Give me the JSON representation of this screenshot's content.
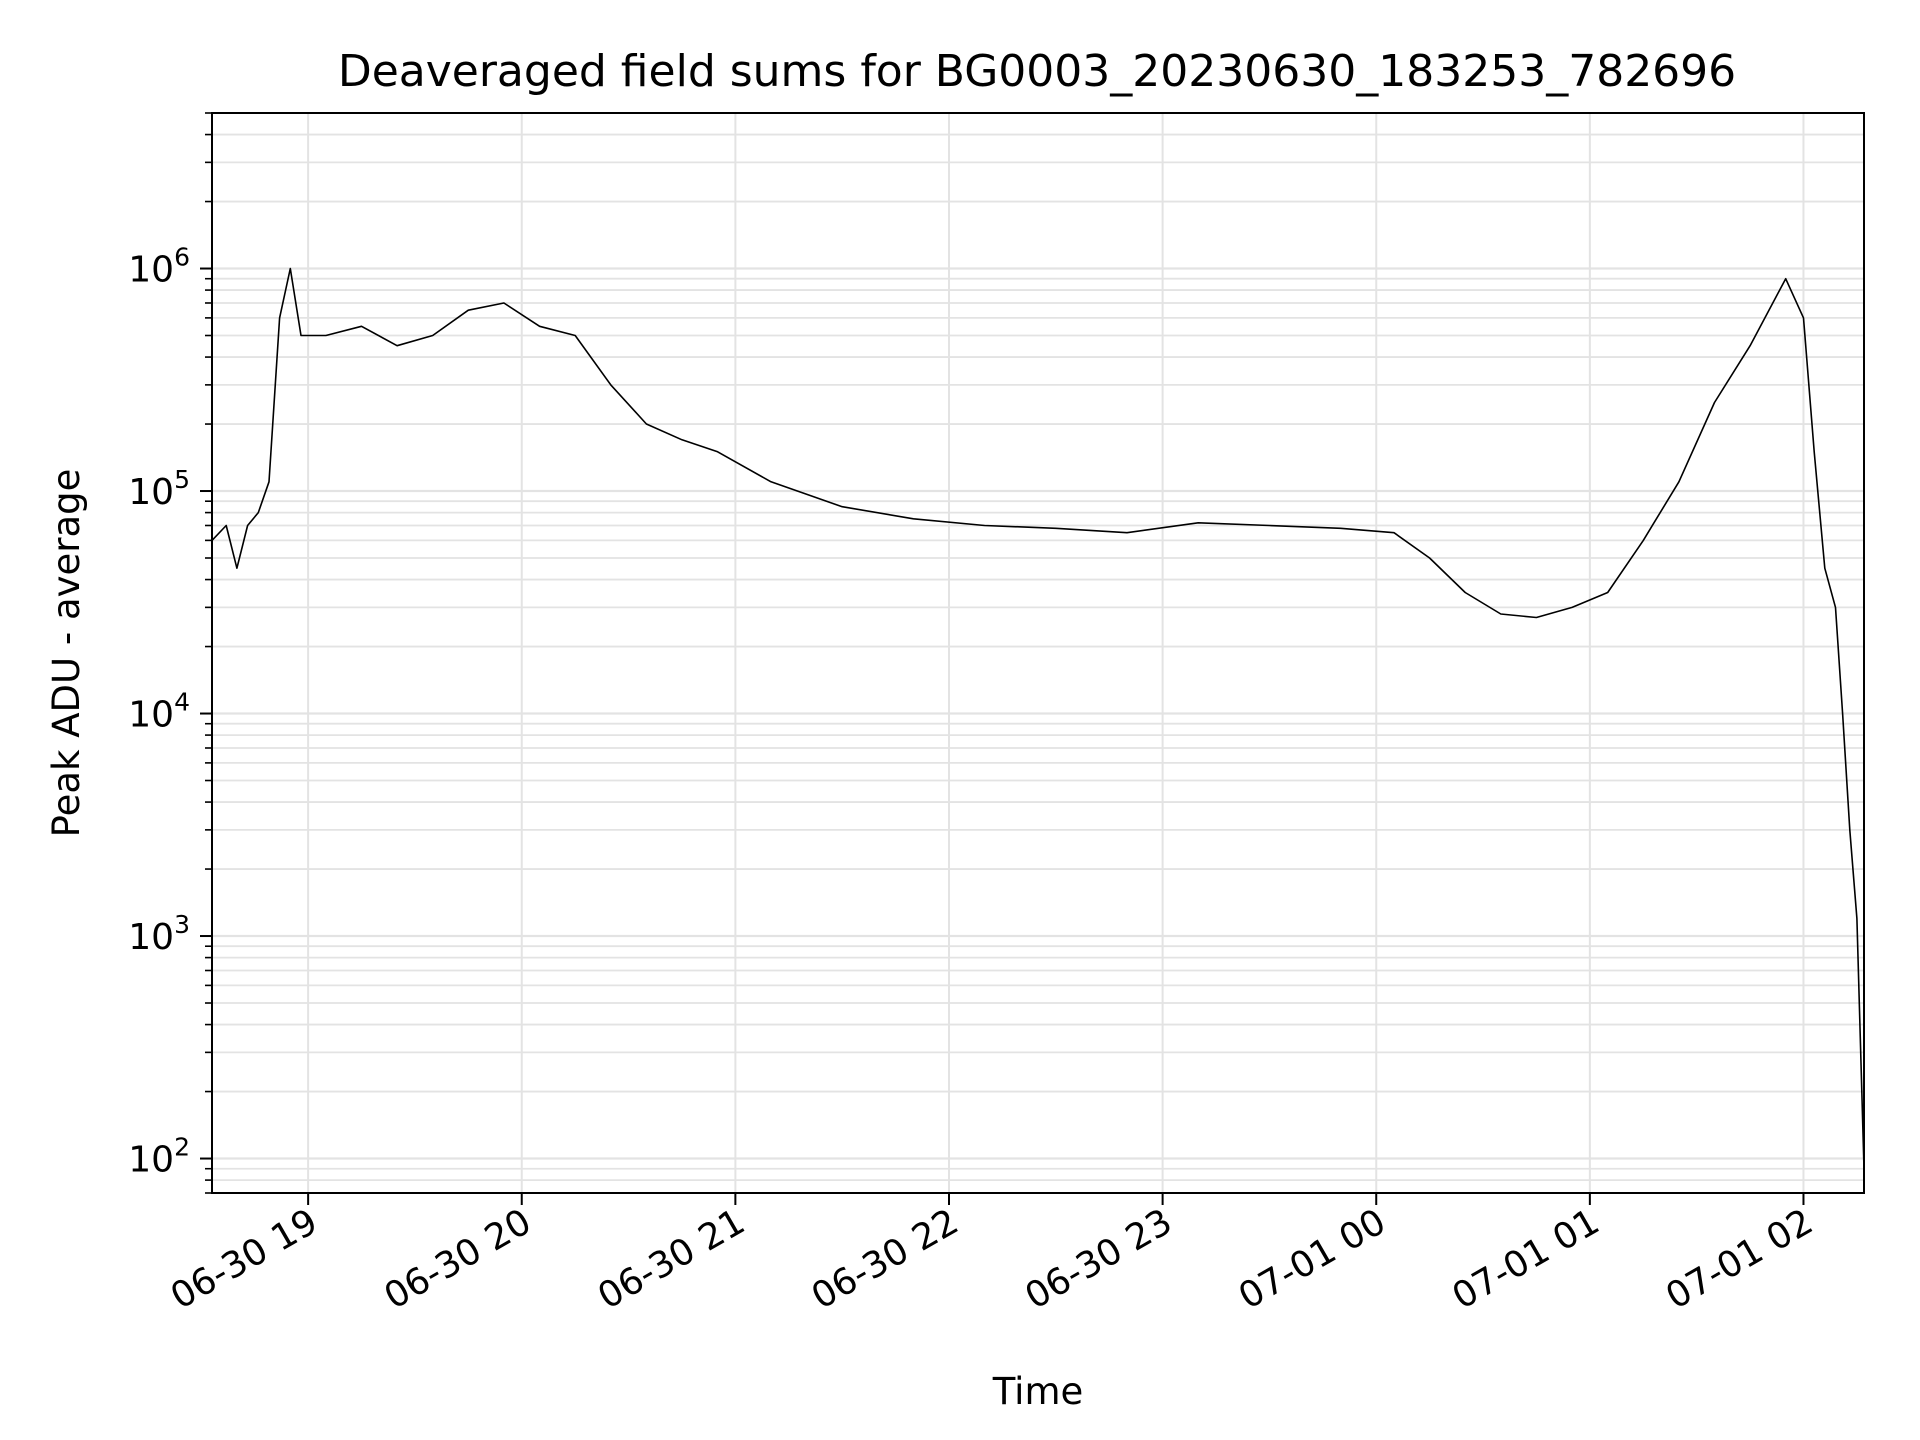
{
  "chart_data": {
    "type": "line",
    "title": "Deaveraged field sums for BG0003_20230630_183253_782696",
    "xlabel": "Time",
    "ylabel": "Peak ADU - average",
    "x_range": [
      "2023-06-30 18:33",
      "2023-07-01 02:17"
    ],
    "y_scale": "log",
    "ylim": [
      70,
      5000000
    ],
    "grid": true,
    "line_color": "#000000",
    "grid_color": "#e3e3e3",
    "x_ticks": [
      {
        "value": "2023-06-30 19:00",
        "label": "06-30 19"
      },
      {
        "value": "2023-06-30 20:00",
        "label": "06-30 20"
      },
      {
        "value": "2023-06-30 21:00",
        "label": "06-30 21"
      },
      {
        "value": "2023-06-30 22:00",
        "label": "06-30 22"
      },
      {
        "value": "2023-06-30 23:00",
        "label": "06-30 23"
      },
      {
        "value": "2023-07-01 00:00",
        "label": "07-01 00"
      },
      {
        "value": "2023-07-01 01:00",
        "label": "07-01 01"
      },
      {
        "value": "2023-07-01 02:00",
        "label": "07-01 02"
      }
    ],
    "y_ticks": [
      {
        "value": 100,
        "base": "10",
        "exp": "2"
      },
      {
        "value": 1000,
        "base": "10",
        "exp": "3"
      },
      {
        "value": 10000,
        "base": "10",
        "exp": "4"
      },
      {
        "value": 100000,
        "base": "10",
        "exp": "5"
      },
      {
        "value": 1000000,
        "base": "10",
        "exp": "6"
      }
    ],
    "series": [
      {
        "points": [
          [
            "2023-06-30 18:33",
            60000
          ],
          [
            "2023-06-30 18:37",
            70000
          ],
          [
            "2023-06-30 18:40",
            45000
          ],
          [
            "2023-06-30 18:43",
            70000
          ],
          [
            "2023-06-30 18:46",
            80000
          ],
          [
            "2023-06-30 18:49",
            110000
          ],
          [
            "2023-06-30 18:52",
            600000
          ],
          [
            "2023-06-30 18:55",
            1000000
          ],
          [
            "2023-06-30 18:58",
            500000
          ],
          [
            "2023-06-30 19:05",
            500000
          ],
          [
            "2023-06-30 19:15",
            550000
          ],
          [
            "2023-06-30 19:25",
            450000
          ],
          [
            "2023-06-30 19:35",
            500000
          ],
          [
            "2023-06-30 19:45",
            650000
          ],
          [
            "2023-06-30 19:55",
            700000
          ],
          [
            "2023-06-30 20:05",
            550000
          ],
          [
            "2023-06-30 20:15",
            500000
          ],
          [
            "2023-06-30 20:25",
            300000
          ],
          [
            "2023-06-30 20:35",
            200000
          ],
          [
            "2023-06-30 20:45",
            170000
          ],
          [
            "2023-06-30 20:55",
            150000
          ],
          [
            "2023-06-30 21:10",
            110000
          ],
          [
            "2023-06-30 21:30",
            85000
          ],
          [
            "2023-06-30 21:50",
            75000
          ],
          [
            "2023-06-30 22:10",
            70000
          ],
          [
            "2023-06-30 22:30",
            68000
          ],
          [
            "2023-06-30 22:50",
            65000
          ],
          [
            "2023-06-30 23:10",
            72000
          ],
          [
            "2023-06-30 23:30",
            70000
          ],
          [
            "2023-06-30 23:50",
            68000
          ],
          [
            "2023-07-01 00:05",
            65000
          ],
          [
            "2023-07-01 00:15",
            50000
          ],
          [
            "2023-07-01 00:25",
            35000
          ],
          [
            "2023-07-01 00:35",
            28000
          ],
          [
            "2023-07-01 00:45",
            27000
          ],
          [
            "2023-07-01 00:55",
            30000
          ],
          [
            "2023-07-01 01:05",
            35000
          ],
          [
            "2023-07-01 01:15",
            60000
          ],
          [
            "2023-07-01 01:25",
            110000
          ],
          [
            "2023-07-01 01:35",
            250000
          ],
          [
            "2023-07-01 01:45",
            450000
          ],
          [
            "2023-07-01 01:55",
            900000
          ],
          [
            "2023-07-01 02:00",
            600000
          ],
          [
            "2023-07-01 02:03",
            150000
          ],
          [
            "2023-07-01 02:06",
            45000
          ],
          [
            "2023-07-01 02:09",
            30000
          ],
          [
            "2023-07-01 02:11",
            10000
          ],
          [
            "2023-07-01 02:13",
            3000
          ],
          [
            "2023-07-01 02:15",
            1200
          ],
          [
            "2023-07-01 02:17",
            90
          ]
        ]
      }
    ]
  }
}
